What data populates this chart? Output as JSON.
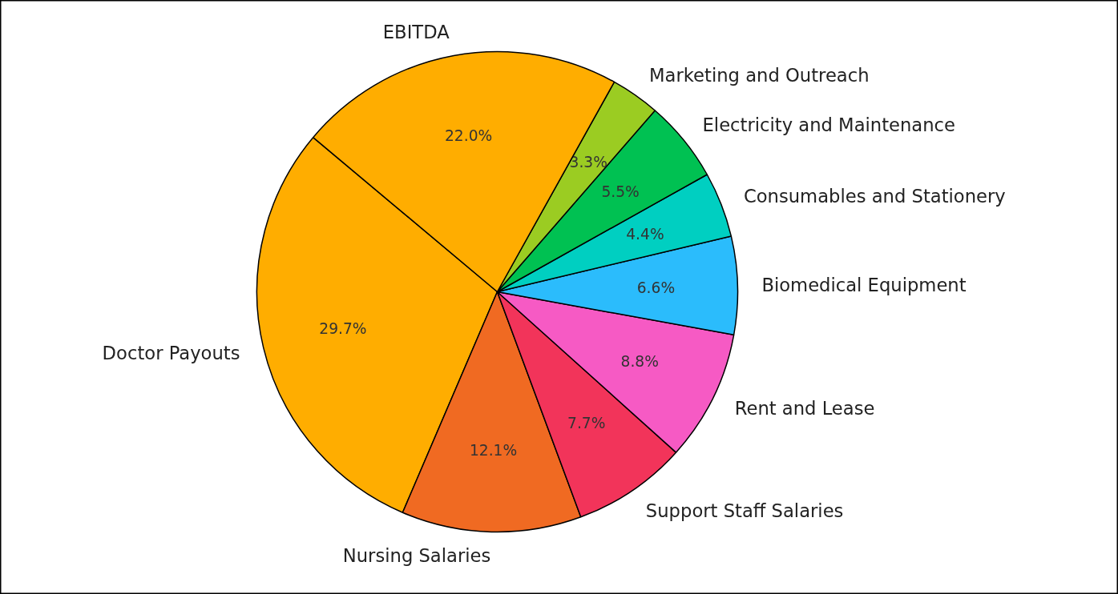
{
  "chart_data": {
    "type": "pie",
    "categories": [
      "Doctor Payouts",
      "Nursing Salaries",
      "Support Staff Salaries",
      "Rent and Lease",
      "Biomedical Equipment",
      "Consumables and Stationery",
      "Electricity and Maintenance",
      "Marketing and Outreach",
      "EBITDA"
    ],
    "values": [
      29.7,
      12.1,
      7.7,
      8.8,
      6.6,
      4.4,
      5.5,
      3.3,
      22.0
    ],
    "colors": [
      "#ffad00",
      "#f06a22",
      "#f2345a",
      "#f65ac4",
      "#2bbcfc",
      "#00cfc1",
      "#00c152",
      "#9bcc22",
      "#ffad00"
    ],
    "value_labels": [
      "29.7%",
      "12.1%",
      "7.7%",
      "8.8%",
      "6.6%",
      "4.4%",
      "5.5%",
      "3.3%",
      "22.0%"
    ]
  }
}
